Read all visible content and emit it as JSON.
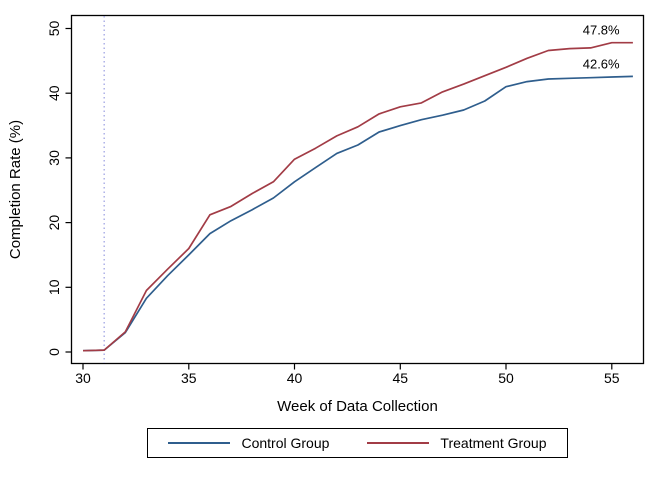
{
  "chart_data": {
    "type": "line",
    "title": "",
    "xlabel": "Week of Data Collection",
    "ylabel": "Completion Rate (%)",
    "x_ticks": [
      30,
      35,
      40,
      45,
      50,
      55
    ],
    "y_ticks": [
      0,
      10,
      20,
      30,
      40,
      50
    ],
    "xlim": [
      29.5,
      56.5
    ],
    "ylim": [
      -2,
      52
    ],
    "grid": false,
    "frame_color": "#000000",
    "vline": {
      "week": 31,
      "style": "dotted",
      "color": "#8e93de"
    },
    "x": [
      30,
      31,
      32,
      33,
      34,
      35,
      36,
      37,
      38,
      39,
      40,
      41,
      42,
      43,
      44,
      45,
      46,
      47,
      48,
      49,
      50,
      51,
      52,
      53,
      54,
      55,
      56
    ],
    "series": [
      {
        "name": "Control Group",
        "color": "#2f5e8d",
        "values": [
          0.2,
          0.3,
          3.0,
          8.3,
          11.8,
          15.0,
          18.3,
          20.3,
          22.0,
          23.8,
          26.3,
          28.5,
          30.7,
          32.0,
          34.0,
          35.0,
          35.9,
          36.6,
          37.4,
          38.8,
          41.0,
          41.8,
          42.2,
          42.3,
          42.4,
          42.5,
          42.6
        ]
      },
      {
        "name": "Treatment Group",
        "color": "#a23c46",
        "values": [
          0.2,
          0.3,
          3.1,
          9.5,
          12.8,
          16.0,
          21.2,
          22.5,
          24.5,
          26.3,
          29.8,
          31.5,
          33.4,
          34.8,
          36.8,
          37.9,
          38.5,
          40.2,
          41.4,
          42.7,
          44.0,
          45.4,
          46.6,
          46.9,
          47.0,
          47.8,
          47.8
        ]
      }
    ],
    "annotations": [
      {
        "label": "47.8%",
        "series": "Treatment Group",
        "value": 47.8,
        "anchor_week": 54.5
      },
      {
        "label": "42.6%",
        "series": "Control Group",
        "value": 42.6,
        "anchor_week": 54.5
      }
    ],
    "legend": {
      "position": "bottom",
      "labels": [
        "Control Group",
        "Treatment Group"
      ]
    }
  }
}
